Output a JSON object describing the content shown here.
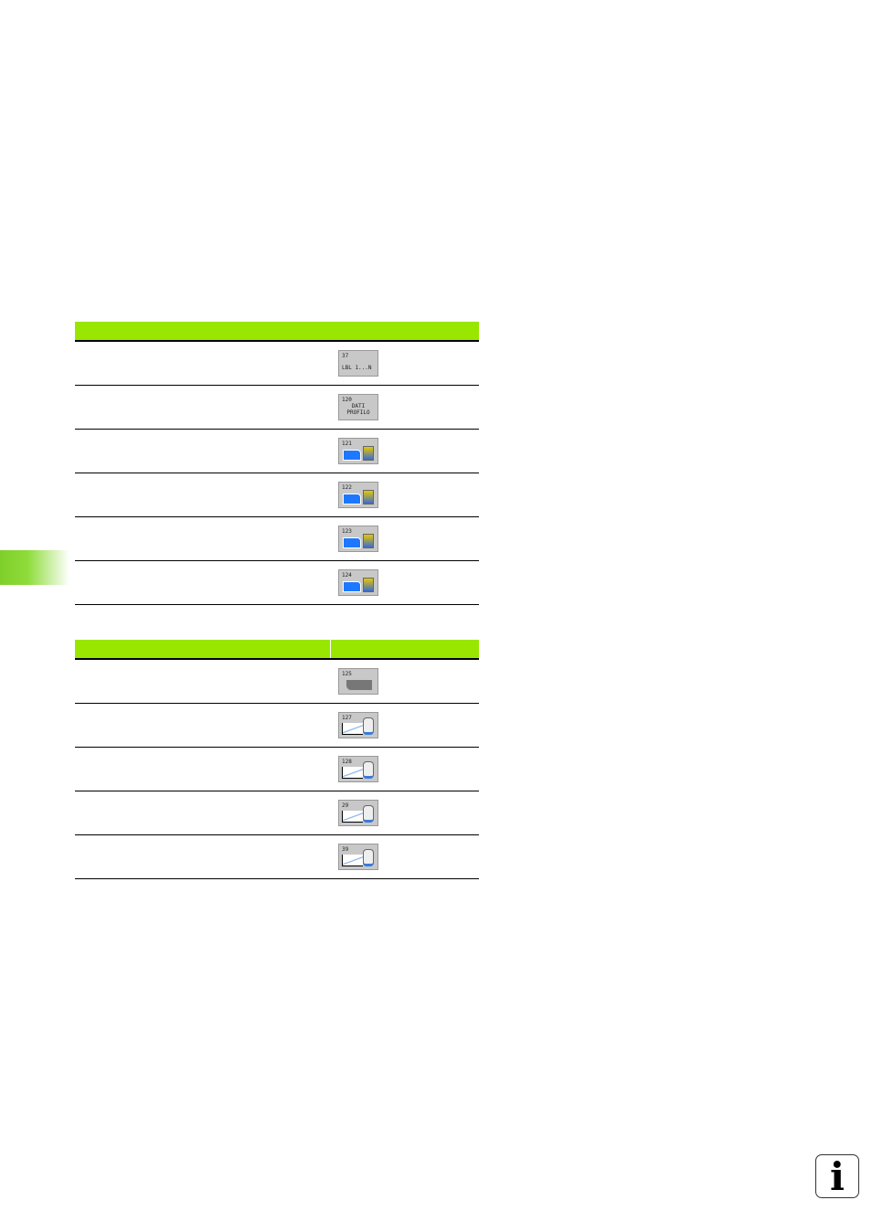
{
  "colors": {
    "header": "#99e600",
    "side_tab": "#7fcf2a"
  },
  "table1": {
    "rows": [
      {
        "description": "",
        "softkey": {
          "line1": "37",
          "line2": "LBL 1...N",
          "type": "text"
        }
      },
      {
        "description": "",
        "softkey": {
          "line1": "120",
          "line2": "DATI",
          "line3": "PROFILO",
          "type": "text"
        }
      },
      {
        "description": "",
        "softkey": {
          "line1": "121",
          "type": "contour-tool"
        }
      },
      {
        "description": "",
        "softkey": {
          "line1": "122",
          "type": "contour-tool"
        }
      },
      {
        "description": "",
        "softkey": {
          "line1": "123",
          "type": "contour-tool"
        }
      },
      {
        "description": "",
        "softkey": {
          "line1": "124",
          "type": "contour-tool"
        }
      }
    ]
  },
  "table2": {
    "rows": [
      {
        "description": "",
        "softkey": {
          "line1": "125",
          "type": "profile"
        }
      },
      {
        "description": "",
        "softkey": {
          "line1": "127",
          "type": "cylinder"
        }
      },
      {
        "description": "",
        "softkey": {
          "line1": "128",
          "type": "cylinder"
        }
      },
      {
        "description": "",
        "softkey": {
          "line1": "29",
          "type": "cylinder"
        }
      },
      {
        "description": "",
        "softkey": {
          "line1": "39",
          "type": "cylinder"
        }
      }
    ]
  },
  "info_icon": "info-icon",
  "info_glyph": "i"
}
